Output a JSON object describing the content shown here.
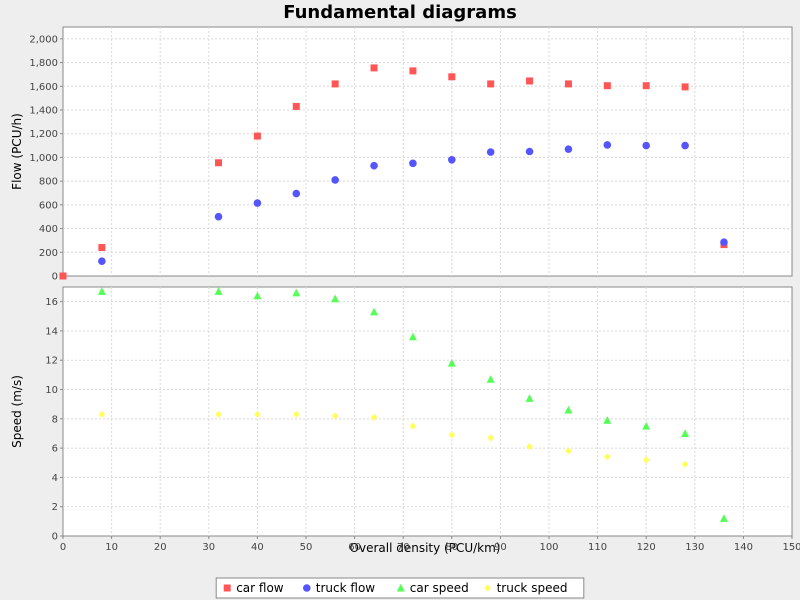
{
  "chart_data": {
    "type": "scatter",
    "title": "Fundamental diagrams",
    "xlabel": "Overall density (PCU/km)",
    "xlim": [
      0,
      150
    ],
    "xticks": [
      0,
      10,
      20,
      30,
      40,
      50,
      60,
      70,
      80,
      90,
      100,
      110,
      120,
      130,
      140,
      150
    ],
    "grid": true,
    "legend_position": "bottom",
    "panels": [
      {
        "ylabel": "Flow (PCU/h)",
        "ylim": [
          0,
          2100
        ],
        "yticks": [
          0,
          200,
          400,
          600,
          800,
          1000,
          1200,
          1400,
          1600,
          1800,
          2000
        ],
        "ytick_labels": [
          "0",
          "200",
          "400",
          "600",
          "800",
          "1,000",
          "1,200",
          "1,400",
          "1,600",
          "1,800",
          "2,000"
        ],
        "series": [
          {
            "name": "car flow",
            "marker": "square",
            "color": "#ff5555",
            "x": [
              0,
              8,
              32,
              40,
              48,
              56,
              64,
              72,
              80,
              88,
              96,
              104,
              112,
              120,
              128,
              136
            ],
            "y": [
              0,
              240,
              955,
              1180,
              1430,
              1620,
              1755,
              1730,
              1680,
              1620,
              1645,
              1620,
              1605,
              1605,
              1595,
              265
            ]
          },
          {
            "name": "truck flow",
            "marker": "circle",
            "color": "#5555ff",
            "x": [
              8,
              32,
              40,
              48,
              56,
              64,
              72,
              80,
              88,
              96,
              104,
              112,
              120,
              128,
              136
            ],
            "y": [
              125,
              500,
              615,
              695,
              810,
              930,
              950,
              980,
              1045,
              1050,
              1070,
              1105,
              1100,
              1100,
              285
            ]
          }
        ]
      },
      {
        "ylabel": "Speed (m/s)",
        "ylim": [
          0,
          17
        ],
        "yticks": [
          0,
          2,
          4,
          6,
          8,
          10,
          12,
          14,
          16
        ],
        "ytick_labels": [
          "0",
          "2",
          "4",
          "6",
          "8",
          "10",
          "12",
          "14",
          "16"
        ],
        "series": [
          {
            "name": "car speed",
            "marker": "triangle",
            "color": "#55ff55",
            "x": [
              8,
              32,
              40,
              48,
              56,
              64,
              72,
              80,
              88,
              96,
              104,
              112,
              120,
              128,
              136
            ],
            "y": [
              16.7,
              16.7,
              16.4,
              16.6,
              16.2,
              15.3,
              13.6,
              11.8,
              10.7,
              9.4,
              8.6,
              7.9,
              7.5,
              7.0,
              1.2
            ]
          },
          {
            "name": "truck speed",
            "marker": "diamond",
            "color": "#ffff55",
            "x": [
              8,
              32,
              40,
              48,
              56,
              64,
              72,
              80,
              88,
              96,
              104,
              112,
              120,
              128
            ],
            "y": [
              8.3,
              8.3,
              8.3,
              8.3,
              8.2,
              8.1,
              7.5,
              6.9,
              6.7,
              6.1,
              5.8,
              5.4,
              5.2,
              4.9
            ]
          }
        ]
      }
    ],
    "legend": [
      "car flow",
      "truck flow",
      "car speed",
      "truck speed"
    ]
  }
}
